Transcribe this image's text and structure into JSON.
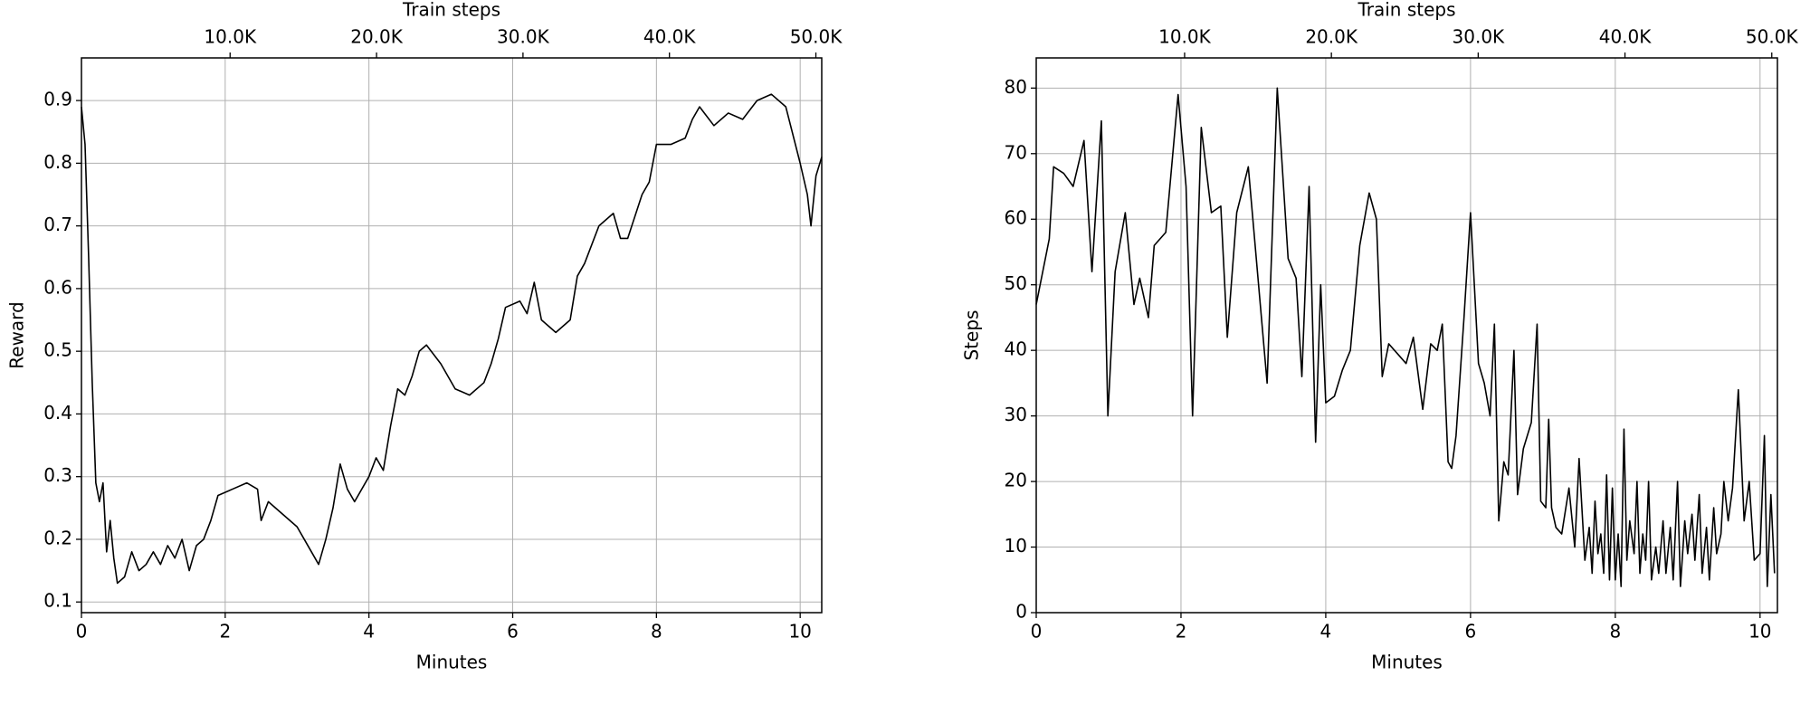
{
  "chart_data": [
    {
      "type": "line",
      "xlabel": "Minutes",
      "x2label": "Train steps",
      "ylabel": "Reward",
      "color": "#000000",
      "grid": true,
      "xlim": [
        0,
        10.3
      ],
      "xticks": [
        0,
        2,
        4,
        6,
        8,
        10
      ],
      "x2lim": [
        -150,
        50400
      ],
      "x2ticks": [
        {
          "value": 10000,
          "label": "10.0K"
        },
        {
          "value": 20000,
          "label": "20.0K"
        },
        {
          "value": 30000,
          "label": "30.0K"
        },
        {
          "value": 40000,
          "label": "40.0K"
        },
        {
          "value": 50000,
          "label": "50.0K"
        }
      ],
      "ylim": [
        0.083,
        0.968
      ],
      "yticks": [
        0.1,
        0.2,
        0.3,
        0.4,
        0.5,
        0.6,
        0.7,
        0.8,
        0.9
      ],
      "x": [
        0,
        0.05,
        0.1,
        0.15,
        0.2,
        0.25,
        0.3,
        0.35,
        0.4,
        0.45,
        0.5,
        0.6,
        0.7,
        0.8,
        0.9,
        1.0,
        1.1,
        1.2,
        1.3,
        1.4,
        1.5,
        1.6,
        1.7,
        1.8,
        1.9,
        2.1,
        2.3,
        2.45,
        2.5,
        2.6,
        2.8,
        3.0,
        3.1,
        3.2,
        3.3,
        3.4,
        3.5,
        3.6,
        3.7,
        3.8,
        4.0,
        4.1,
        4.2,
        4.3,
        4.4,
        4.5,
        4.6,
        4.7,
        4.8,
        5.0,
        5.1,
        5.2,
        5.4,
        5.6,
        5.7,
        5.8,
        5.9,
        6.1,
        6.2,
        6.3,
        6.4,
        6.6,
        6.8,
        6.9,
        7.0,
        7.2,
        7.4,
        7.5,
        7.6,
        7.8,
        7.9,
        8.0,
        8.2,
        8.4,
        8.5,
        8.6,
        8.8,
        9.0,
        9.2,
        9.4,
        9.6,
        9.8,
        10.0,
        10.1,
        10.15,
        10.22,
        10.3
      ],
      "values": [
        0.89,
        0.83,
        0.65,
        0.45,
        0.29,
        0.26,
        0.29,
        0.18,
        0.23,
        0.17,
        0.13,
        0.14,
        0.18,
        0.15,
        0.16,
        0.18,
        0.16,
        0.19,
        0.17,
        0.2,
        0.15,
        0.19,
        0.2,
        0.23,
        0.27,
        0.28,
        0.29,
        0.28,
        0.23,
        0.26,
        0.24,
        0.22,
        0.2,
        0.18,
        0.16,
        0.2,
        0.25,
        0.32,
        0.28,
        0.26,
        0.3,
        0.33,
        0.31,
        0.38,
        0.44,
        0.43,
        0.46,
        0.5,
        0.51,
        0.48,
        0.46,
        0.44,
        0.43,
        0.45,
        0.48,
        0.52,
        0.57,
        0.58,
        0.56,
        0.61,
        0.55,
        0.53,
        0.55,
        0.62,
        0.64,
        0.7,
        0.72,
        0.68,
        0.68,
        0.75,
        0.77,
        0.83,
        0.83,
        0.84,
        0.87,
        0.89,
        0.86,
        0.88,
        0.87,
        0.9,
        0.91,
        0.89,
        0.8,
        0.75,
        0.7,
        0.78,
        0.81
      ]
    },
    {
      "type": "line",
      "xlabel": "Minutes",
      "x2label": "Train steps",
      "ylabel": "Steps",
      "color": "#000000",
      "grid": true,
      "xlim": [
        0,
        10.24
      ],
      "xticks": [
        0,
        2,
        4,
        6,
        8,
        10
      ],
      "x2lim": [
        -108,
        50385
      ],
      "x2ticks": [
        {
          "value": 10000,
          "label": "10.0K"
        },
        {
          "value": 20000,
          "label": "20.0K"
        },
        {
          "value": 30000,
          "label": "30.0K"
        },
        {
          "value": 40000,
          "label": "40.0K"
        },
        {
          "value": 50000,
          "label": "50.0K"
        }
      ],
      "ylim": [
        0,
        84.6
      ],
      "yticks": [
        0,
        10,
        20,
        30,
        40,
        50,
        60,
        70,
        80
      ],
      "x": [
        0,
        0.18,
        0.24,
        0.38,
        0.51,
        0.66,
        0.77,
        0.9,
        0.99,
        1.09,
        1.23,
        1.35,
        1.43,
        1.55,
        1.63,
        1.79,
        1.96,
        2.07,
        2.16,
        2.28,
        2.42,
        2.55,
        2.64,
        2.77,
        2.93,
        3.19,
        3.33,
        3.48,
        3.59,
        3.67,
        3.77,
        3.86,
        3.93,
        4.0,
        4.12,
        4.23,
        4.34,
        4.47,
        4.6,
        4.7,
        4.78,
        4.87,
        5.11,
        5.21,
        5.34,
        5.45,
        5.54,
        5.61,
        5.69,
        5.74,
        5.8,
        5.91,
        6.0,
        6.11,
        6.19,
        6.27,
        6.33,
        6.39,
        6.46,
        6.52,
        6.6,
        6.65,
        6.73,
        6.84,
        6.92,
        6.97,
        7.04,
        7.08,
        7.12,
        7.18,
        7.26,
        7.36,
        7.44,
        7.5,
        7.58,
        7.64,
        7.68,
        7.72,
        7.76,
        7.8,
        7.84,
        7.88,
        7.92,
        7.96,
        8.0,
        8.04,
        8.08,
        8.12,
        8.16,
        8.2,
        8.26,
        8.3,
        8.34,
        8.38,
        8.42,
        8.46,
        8.5,
        8.56,
        8.6,
        8.66,
        8.7,
        8.76,
        8.8,
        8.86,
        8.9,
        8.96,
        9.0,
        9.06,
        9.1,
        9.16,
        9.2,
        9.26,
        9.3,
        9.36,
        9.4,
        9.46,
        9.5,
        9.56,
        9.62,
        9.7,
        9.78,
        9.85,
        9.92,
        10.0,
        10.06,
        10.1,
        10.15,
        10.2
      ],
      "values": [
        47,
        57,
        68,
        67,
        65,
        72,
        52,
        75,
        30,
        52,
        61,
        47,
        51,
        45,
        56,
        58,
        79,
        65,
        30,
        74,
        61,
        62,
        42,
        61,
        68,
        35,
        80,
        54,
        51,
        36,
        65,
        26,
        50,
        32,
        33,
        37,
        40,
        56,
        64,
        60,
        36,
        41,
        38,
        42,
        31,
        41,
        40,
        44,
        23,
        22,
        27,
        45,
        61,
        38,
        35,
        30,
        44,
        14,
        23,
        21,
        40,
        18,
        25,
        29,
        44,
        17,
        16,
        29.5,
        16,
        13,
        12,
        19,
        10,
        23.5,
        8,
        13,
        6,
        17,
        9,
        12,
        6,
        21,
        5,
        19,
        5,
        12,
        4,
        28,
        8,
        14,
        9,
        20,
        6,
        12,
        8,
        20,
        5,
        10,
        6,
        14,
        6,
        13,
        5,
        20,
        4,
        14,
        9,
        15,
        8,
        18,
        6,
        13,
        5,
        16,
        9,
        12,
        20,
        14,
        19,
        34,
        14,
        20,
        8,
        9,
        27,
        4,
        18,
        6
      ]
    }
  ]
}
